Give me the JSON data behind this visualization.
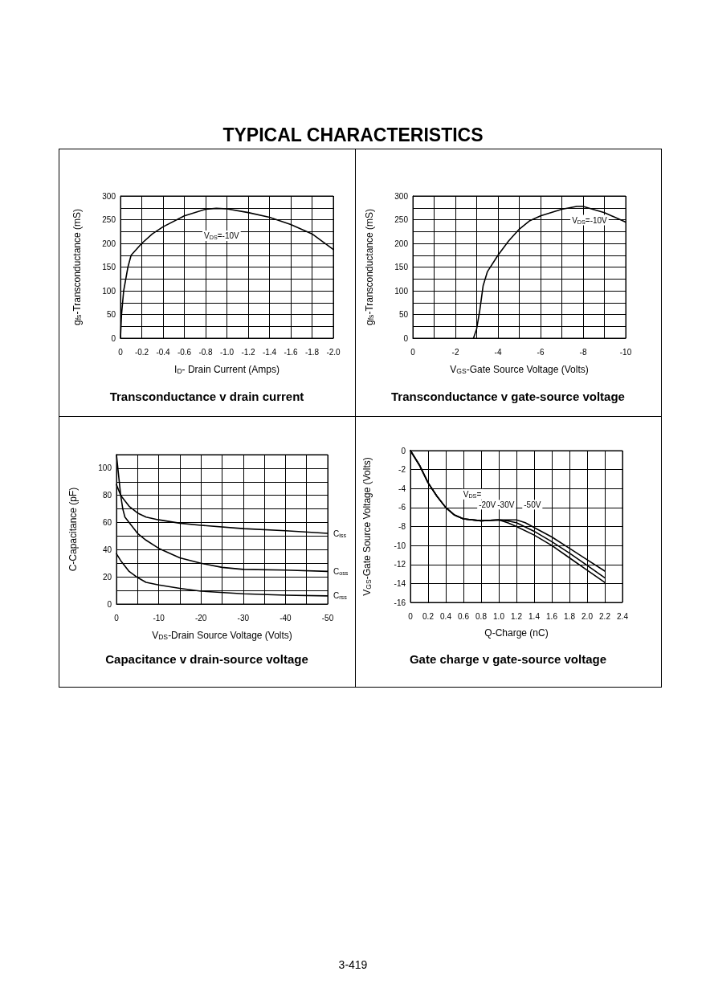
{
  "chart_data": [
    {
      "type": "line",
      "title": "Transconductance v drain current",
      "xlabel": "I$_{D}$- Drain Current (Amps)",
      "ylabel": "g$_{fs}$-Transconductance (mS)",
      "marker": "none",
      "line_style": "solid",
      "grid": true,
      "xlim": [
        0,
        -2.0
      ],
      "xticks": [
        0,
        -0.2,
        -0.4,
        -0.6,
        -0.8,
        {
          "value": -1,
          "label": "-1.0"
        },
        -1.2,
        -1.4,
        -1.6,
        -1.8,
        {
          "value": -2,
          "label": "-2.0"
        }
      ],
      "ylim": [
        0,
        300
      ],
      "yticks": [
        0,
        {
          "value": 25,
          "label": null
        },
        50,
        {
          "value": 75,
          "label": null
        },
        100,
        {
          "value": 125,
          "label": null
        },
        150,
        {
          "value": 175,
          "label": null
        },
        200,
        {
          "value": 225,
          "label": null
        },
        250,
        {
          "value": 275,
          "label": null
        },
        300
      ],
      "series": [
        {
          "name": "V$_{DS}$=-10V",
          "color": "#000000",
          "x": [
            0,
            -0.01,
            -0.03,
            -0.07,
            -0.1,
            -0.2,
            -0.3,
            -0.4,
            -0.6,
            -0.8,
            -0.9,
            -1.0,
            -1.2,
            -1.4,
            -1.6,
            -1.8,
            -2.0
          ],
          "values": [
            0,
            50,
            100,
            150,
            175,
            200,
            220,
            235,
            258,
            272,
            274,
            273,
            265,
            255,
            240,
            220,
            187
          ]
        }
      ],
      "annotations": [
        "TYPICAL CHARACTERISTICS"
      ]
    },
    {
      "type": "line",
      "title": "Transconductance v gate-source voltage",
      "xlabel": "V$_{GS}$-Gate Source Voltage (Volts)",
      "ylabel": "g$_{fs}$-Transconductance (mS)",
      "marker": "none",
      "line_style": "solid",
      "grid": true,
      "xlim": [
        0,
        -10
      ],
      "xticks": [
        0,
        {
          "value": -1,
          "label": null
        },
        -2,
        {
          "value": -3,
          "label": null
        },
        -4,
        {
          "value": -5,
          "label": null
        },
        -6,
        {
          "value": -7,
          "label": null
        },
        -8,
        {
          "value": -9,
          "label": null
        },
        -10
      ],
      "ylim": [
        0,
        300
      ],
      "yticks": [
        0,
        {
          "value": 25,
          "label": null
        },
        50,
        {
          "value": 75,
          "label": null
        },
        100,
        {
          "value": 125,
          "label": null
        },
        150,
        {
          "value": 175,
          "label": null
        },
        200,
        {
          "value": 225,
          "label": null
        },
        250,
        {
          "value": 275,
          "label": null
        },
        300
      ],
      "series": [
        {
          "name": "V$_{DS}$=-10V",
          "color": "#000000",
          "x": [
            -2.85,
            -3.0,
            -3.15,
            -3.3,
            -3.5,
            -4,
            -4.5,
            -5,
            -5.5,
            -6,
            -7,
            -7.7,
            -8,
            -9,
            -10
          ],
          "values": [
            0,
            20,
            60,
            110,
            140,
            175,
            205,
            230,
            248,
            258,
            272,
            278,
            278,
            265,
            245
          ]
        }
      ]
    },
    {
      "type": "line",
      "title": "Capacitance v drain-source voltage",
      "xlabel": "V$_{DS}$-Drain Source Voltage (Volts)",
      "ylabel": "C-Capacitance (pF)",
      "marker": "none",
      "line_style": "solid",
      "grid": true,
      "xlim": [
        0,
        -50
      ],
      "xticks": [
        0,
        {
          "value": -5,
          "label": null
        },
        -10,
        {
          "value": -15,
          "label": null
        },
        -20,
        {
          "value": -25,
          "label": null
        },
        -30,
        {
          "value": -35,
          "label": null
        },
        -40,
        {
          "value": -45,
          "label": null
        },
        -50
      ],
      "ylim": [
        0,
        110
      ],
      "yticks": [
        0,
        {
          "value": 10,
          "label": null
        },
        20,
        {
          "value": 30,
          "label": null
        },
        40,
        {
          "value": 50,
          "label": null
        },
        60,
        {
          "value": 70,
          "label": null
        },
        80,
        {
          "value": 90,
          "label": null
        },
        100,
        {
          "value": 110,
          "label": null
        }
      ],
      "series": [
        {
          "name": "C$_{iss}$",
          "color": "#000000",
          "x": [
            0,
            -1,
            -3,
            -5,
            -7,
            -10,
            -15,
            -20,
            -30,
            -40,
            -50
          ],
          "values": [
            88,
            80,
            72,
            67,
            64,
            62,
            59.5,
            58,
            55.5,
            54,
            52
          ]
        },
        {
          "name": "C$_{oss}$",
          "color": "#000000",
          "x": [
            0,
            -0.5,
            -1,
            -1.5,
            -2,
            -3,
            -5,
            -7,
            -10,
            -15,
            -20,
            -25,
            -30,
            -40,
            -50
          ],
          "values": [
            110,
            95,
            80,
            70,
            64,
            60,
            52,
            47,
            41,
            34,
            30,
            27,
            25.5,
            25,
            24
          ]
        },
        {
          "name": "C$_{rss}$",
          "color": "#000000",
          "x": [
            0,
            -1,
            -2,
            -3,
            -5,
            -7,
            -10,
            -15,
            -20,
            -30,
            -40,
            -50
          ],
          "values": [
            37,
            32,
            28,
            24,
            19.5,
            16,
            14,
            11.5,
            9.5,
            7.5,
            6.5,
            6
          ]
        }
      ]
    },
    {
      "type": "line",
      "title": "Gate charge v gate-source voltage",
      "xlabel": "Q-Charge (nC)",
      "ylabel": "V$_{GS}$-Gate Source Voltage (Volts)",
      "marker": "none",
      "line_style": "solid",
      "grid": true,
      "xlim": [
        0,
        2.4
      ],
      "xticks": [
        0,
        0.2,
        0.4,
        0.6,
        0.8,
        {
          "value": 1,
          "label": "1.0"
        },
        1.2,
        1.4,
        1.6,
        1.8,
        {
          "value": 2,
          "label": "2.0"
        },
        2.2,
        2.4
      ],
      "ylim": [
        -16,
        0
      ],
      "yticks": [
        -16,
        -14,
        -12,
        -10,
        -8,
        -6,
        -4,
        -2,
        0
      ],
      "series": [
        {
          "color": "#000000",
          "x": [
            0,
            0.1,
            0.2,
            0.3,
            0.4,
            0.5,
            0.6,
            0.8,
            1.0,
            1.1,
            1.2,
            1.4,
            1.6,
            1.8,
            2.0,
            2.2
          ],
          "values": [
            0,
            -1.5,
            -3.4,
            -4.8,
            -6,
            -6.8,
            -7.2,
            -7.4,
            -7.3,
            -7.6,
            -8.0,
            -8.9,
            -10.0,
            -11.3,
            -12.6,
            -13.9
          ]
        },
        {
          "color": "#000000",
          "x": [
            0,
            0.1,
            0.2,
            0.3,
            0.4,
            0.5,
            0.6,
            0.8,
            1.0,
            1.1,
            1.2,
            1.4,
            1.6,
            1.8,
            2.0,
            2.2
          ],
          "values": [
            0,
            -1.5,
            -3.4,
            -4.8,
            -6,
            -6.8,
            -7.2,
            -7.4,
            -7.3,
            -7.4,
            -7.6,
            -8.5,
            -9.6,
            -10.8,
            -12.1,
            -13.4
          ]
        },
        {
          "color": "#000000",
          "x": [
            0,
            0.1,
            0.2,
            0.3,
            0.4,
            0.5,
            0.6,
            0.8,
            1.0,
            1.1,
            1.2,
            1.3,
            1.4,
            1.6,
            1.8,
            2.0,
            2.2
          ],
          "values": [
            0,
            -1.5,
            -3.4,
            -4.8,
            -6,
            -6.8,
            -7.2,
            -7.4,
            -7.3,
            -7.3,
            -7.3,
            -7.6,
            -8.1,
            -9.1,
            -10.3,
            -11.5,
            -12.7
          ]
        }
      ],
      "annotations": [
        {
          "text": "V$_{DS}$=",
          "x": 0.7,
          "y": -4.6
        },
        {
          "text": "-20V",
          "x": 0.87,
          "y": -5.7
        },
        {
          "text": "-30V",
          "x": 1.08,
          "y": -5.7
        },
        {
          "text": "-50V",
          "x": 1.38,
          "y": -5.7
        },
        "3-419"
      ]
    }
  ]
}
